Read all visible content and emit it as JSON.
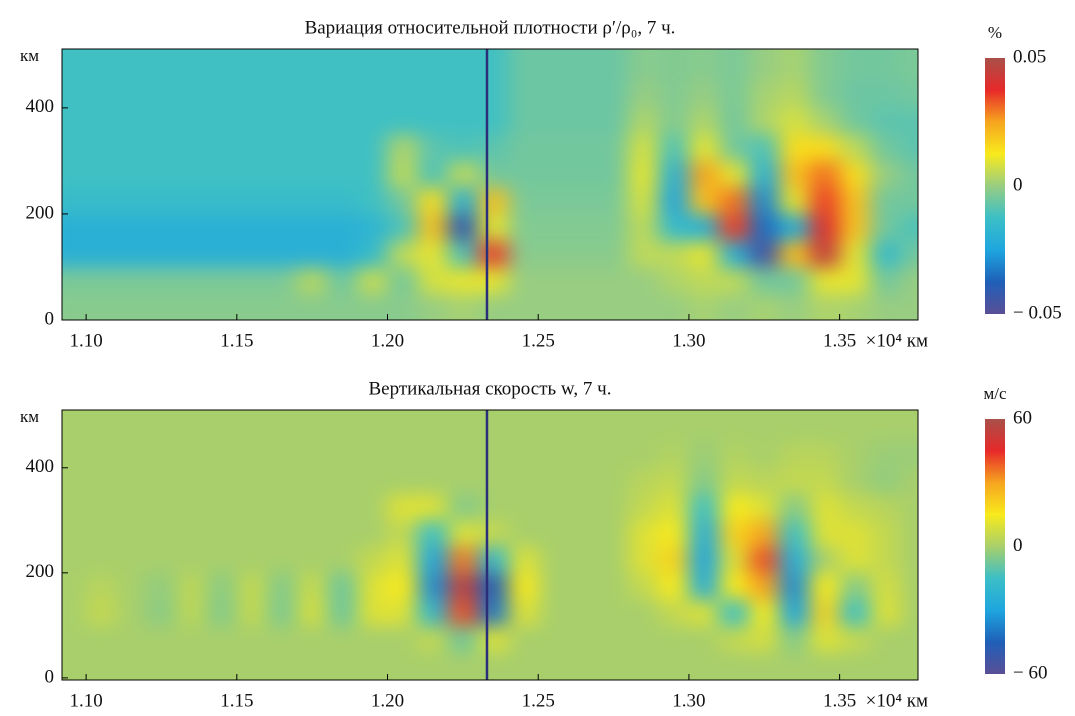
{
  "chart_data": [
    {
      "type": "heatmap",
      "title": "Вариация относительной плотности ρ′/ρ₀, 7 ч.",
      "ylabel": "км",
      "xlabel": "×10⁴ км",
      "xlim": [
        1.092,
        1.376
      ],
      "ylim": [
        0,
        511
      ],
      "xticks": [
        {
          "value": 1.1,
          "label": "1.10"
        },
        1.15,
        {
          "value": 1.2,
          "label": "1.20"
        },
        1.25,
        {
          "value": 1.3,
          "label": "1.30"
        },
        1.35
      ],
      "yticks": [
        0,
        200,
        400
      ],
      "vline": {
        "x": 1.233,
        "color": "#2b2f7a"
      },
      "colormap": [
        "#5a4f96",
        "#1f5fb8",
        "#1ea6df",
        "#3cbfc6",
        "#98cd82",
        "#f8ea1c",
        "#f6a51f",
        "#e7292a",
        "#a9504a"
      ],
      "colorbar": {
        "label": "%",
        "lim": [
          -0.05,
          0.05
        ],
        "ticks": [
          {
            "value": -0.05,
            "label": "− 0.05"
          },
          0,
          0.05
        ]
      },
      "x": [
        1.095,
        1.105,
        1.115,
        1.125,
        1.135,
        1.145,
        1.155,
        1.165,
        1.175,
        1.185,
        1.195,
        1.205,
        1.215,
        1.225,
        1.235,
        1.245,
        1.255,
        1.265,
        1.275,
        1.285,
        1.295,
        1.305,
        1.315,
        1.325,
        1.335,
        1.345,
        1.355,
        1.365,
        1.375
      ],
      "y": [
        25,
        75,
        125,
        175,
        225,
        275,
        325,
        375,
        425,
        475
      ],
      "z": [
        [
          -0.002,
          -0.002,
          -0.002,
          -0.002,
          -0.002,
          -0.002,
          -0.002,
          -0.002,
          -0.002,
          -0.002,
          -0.002,
          -0.002,
          0,
          0.002,
          0,
          0,
          0,
          0,
          0,
          0,
          0,
          0.002,
          0,
          0.002,
          0,
          0.003,
          0.002,
          0,
          0
        ],
        [
          -0.004,
          -0.004,
          -0.004,
          -0.004,
          -0.004,
          -0.004,
          -0.004,
          -0.004,
          0.004,
          -0.006,
          0.006,
          -0.005,
          0.008,
          0.01,
          0.01,
          0,
          0,
          0,
          0,
          0,
          0.003,
          0.005,
          0.005,
          -0.005,
          -0.005,
          0.01,
          0.01,
          -0.005,
          0
        ],
        [
          -0.02,
          -0.02,
          -0.02,
          -0.02,
          -0.02,
          -0.02,
          -0.02,
          -0.02,
          -0.02,
          -0.02,
          -0.015,
          0.005,
          0.01,
          -0.01,
          0.035,
          -0.002,
          -0.002,
          -0.002,
          -0.002,
          0.005,
          0.005,
          0.01,
          -0.02,
          -0.045,
          0.02,
          0.045,
          0.01,
          -0.015,
          -0.005
        ],
        [
          -0.02,
          -0.02,
          -0.02,
          -0.02,
          -0.02,
          -0.02,
          -0.02,
          -0.02,
          -0.02,
          -0.02,
          -0.018,
          -0.01,
          0.02,
          -0.04,
          0.01,
          -0.003,
          -0.003,
          -0.003,
          -0.003,
          0.005,
          -0.015,
          -0.02,
          0.035,
          -0.035,
          -0.02,
          0.04,
          0.02,
          -0.005,
          -0.01
        ],
        [
          -0.014,
          -0.014,
          -0.014,
          -0.014,
          -0.014,
          -0.014,
          -0.014,
          -0.014,
          -0.014,
          -0.014,
          -0.012,
          -0.005,
          0.015,
          -0.02,
          0.02,
          -0.004,
          -0.004,
          -0.004,
          -0.004,
          0.008,
          -0.025,
          0.02,
          0.03,
          -0.03,
          0.01,
          0.035,
          0.02,
          -0.005,
          -0.005
        ],
        [
          -0.012,
          -0.012,
          -0.012,
          -0.012,
          -0.012,
          -0.012,
          -0.012,
          -0.012,
          -0.012,
          -0.012,
          -0.012,
          0.005,
          -0.01,
          0.005,
          -0.005,
          -0.005,
          -0.005,
          -0.005,
          -0.005,
          0.01,
          -0.02,
          0.025,
          0.01,
          -0.02,
          0.02,
          0.03,
          0.015,
          0,
          -0.005
        ],
        [
          -0.012,
          -0.012,
          -0.012,
          -0.012,
          -0.012,
          -0.012,
          -0.012,
          -0.012,
          -0.012,
          -0.012,
          -0.012,
          0.003,
          -0.008,
          -0.01,
          -0.008,
          -0.005,
          -0.005,
          -0.005,
          -0.005,
          0.008,
          -0.01,
          0.01,
          -0.005,
          -0.01,
          0.015,
          0.015,
          0.005,
          -0.005,
          -0.008
        ],
        [
          -0.012,
          -0.012,
          -0.012,
          -0.012,
          -0.012,
          -0.012,
          -0.012,
          -0.012,
          -0.012,
          -0.012,
          -0.012,
          -0.012,
          -0.012,
          -0.012,
          -0.012,
          -0.006,
          -0.006,
          -0.006,
          -0.006,
          0.003,
          -0.003,
          0.003,
          -0.005,
          0.003,
          0.008,
          0.002,
          -0.005,
          -0.008,
          -0.008
        ],
        [
          -0.012,
          -0.012,
          -0.012,
          -0.012,
          -0.012,
          -0.012,
          -0.012,
          -0.012,
          -0.012,
          -0.012,
          -0.012,
          -0.012,
          -0.012,
          -0.012,
          -0.012,
          -0.006,
          -0.006,
          -0.006,
          -0.006,
          0,
          -0.003,
          0,
          -0.004,
          0.002,
          0.004,
          -0.003,
          -0.006,
          -0.006,
          -0.005
        ],
        [
          -0.012,
          -0.012,
          -0.012,
          -0.012,
          -0.012,
          -0.012,
          -0.012,
          -0.012,
          -0.012,
          -0.012,
          -0.012,
          -0.012,
          -0.012,
          -0.012,
          -0.012,
          -0.006,
          -0.006,
          -0.006,
          -0.006,
          -0.002,
          -0.003,
          -0.002,
          -0.004,
          0,
          0.002,
          -0.003,
          -0.005,
          -0.005,
          -0.004
        ]
      ]
    },
    {
      "type": "heatmap",
      "title": "Вертикальная скорость w, 7 ч.",
      "ylabel": "км",
      "xlabel": "×10⁴ км",
      "xlim": [
        1.092,
        1.376
      ],
      "ylim": [
        -4,
        510
      ],
      "xticks": [
        {
          "value": 1.1,
          "label": "1.10"
        },
        1.15,
        {
          "value": 1.2,
          "label": "1.20"
        },
        1.25,
        {
          "value": 1.3,
          "label": "1.30"
        },
        1.35
      ],
      "yticks": [
        0,
        200,
        400
      ],
      "vline": {
        "x": 1.233,
        "color": "#2b2f7a"
      },
      "colormap": [
        "#5a4f96",
        "#1f5fb8",
        "#1ea6df",
        "#3cbfc6",
        "#a8cf6c",
        "#f8ea1c",
        "#f6a51f",
        "#e7292a",
        "#a9504a"
      ],
      "colorbar": {
        "label": "м/с",
        "lim": [
          -60,
          60
        ],
        "ticks": [
          {
            "value": -60,
            "label": "− 60"
          },
          0,
          60
        ]
      },
      "x": [
        1.095,
        1.105,
        1.115,
        1.125,
        1.135,
        1.145,
        1.155,
        1.165,
        1.175,
        1.185,
        1.195,
        1.205,
        1.215,
        1.225,
        1.235,
        1.245,
        1.255,
        1.265,
        1.275,
        1.285,
        1.295,
        1.305,
        1.315,
        1.325,
        1.335,
        1.345,
        1.355,
        1.365,
        1.375
      ],
      "y": [
        25,
        75,
        125,
        175,
        225,
        275,
        325,
        375,
        425,
        475
      ],
      "z": [
        [
          0,
          0,
          0,
          0,
          0,
          0,
          0,
          0,
          0,
          0,
          0,
          0,
          0,
          0,
          0,
          0,
          0,
          0,
          0,
          0,
          0,
          0,
          0,
          0,
          0,
          0,
          0,
          0,
          0
        ],
        [
          0,
          0,
          0,
          0,
          0,
          0,
          0,
          0,
          0,
          0,
          0,
          0,
          5,
          -8,
          10,
          0,
          0,
          0,
          0,
          0,
          0,
          0,
          5,
          8,
          -5,
          10,
          5,
          0,
          0
        ],
        [
          0,
          5,
          0,
          -4,
          4,
          -5,
          5,
          -6,
          8,
          -8,
          10,
          10,
          -20,
          40,
          -40,
          10,
          0,
          0,
          0,
          0,
          5,
          10,
          -15,
          15,
          -30,
          20,
          -15,
          10,
          0
        ],
        [
          0,
          3,
          0,
          -3,
          4,
          -4,
          5,
          -5,
          6,
          -8,
          10,
          15,
          -35,
          55,
          -45,
          15,
          0,
          0,
          0,
          5,
          15,
          -25,
          15,
          30,
          -35,
          15,
          -5,
          8,
          0
        ],
        [
          0,
          0,
          0,
          0,
          0,
          0,
          0,
          0,
          0,
          0,
          5,
          10,
          -30,
          35,
          -20,
          10,
          0,
          0,
          0,
          10,
          20,
          -30,
          10,
          40,
          -25,
          0,
          10,
          5,
          0
        ],
        [
          0,
          0,
          0,
          0,
          0,
          0,
          0,
          0,
          0,
          0,
          0,
          5,
          -15,
          10,
          5,
          0,
          0,
          0,
          0,
          10,
          15,
          -25,
          20,
          30,
          -15,
          10,
          10,
          5,
          0
        ],
        [
          0,
          0,
          0,
          0,
          0,
          0,
          0,
          0,
          0,
          0,
          0,
          10,
          10,
          -5,
          0,
          0,
          0,
          0,
          0,
          5,
          10,
          -15,
          15,
          10,
          -5,
          10,
          5,
          3,
          0
        ],
        [
          0,
          0,
          0,
          0,
          0,
          0,
          0,
          0,
          0,
          0,
          0,
          0,
          0,
          0,
          0,
          0,
          0,
          0,
          0,
          3,
          5,
          -5,
          5,
          3,
          5,
          5,
          0,
          -3,
          0
        ],
        [
          0,
          0,
          0,
          0,
          0,
          0,
          0,
          0,
          0,
          0,
          0,
          0,
          0,
          0,
          0,
          0,
          0,
          0,
          0,
          0,
          2,
          -2,
          2,
          0,
          3,
          3,
          0,
          -2,
          -2
        ],
        [
          0,
          0,
          0,
          0,
          0,
          0,
          0,
          0,
          0,
          0,
          0,
          0,
          0,
          0,
          0,
          0,
          0,
          0,
          0,
          0,
          0,
          0,
          0,
          0,
          0,
          0,
          0,
          0,
          0
        ]
      ]
    }
  ]
}
